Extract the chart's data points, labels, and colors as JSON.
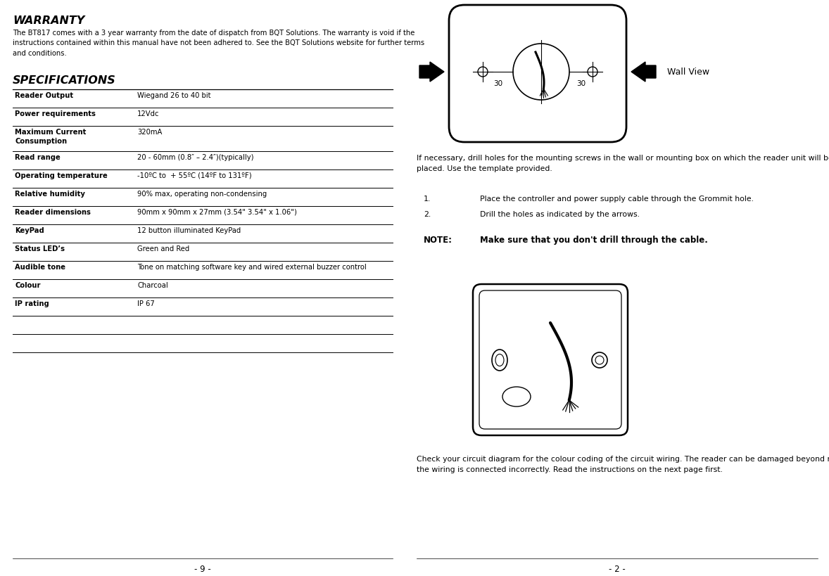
{
  "bg_color": "#ffffff",
  "warranty_title": "WARRANTY",
  "warranty_body": "The BT817 comes with a 3 year warranty from the date of dispatch from BQT Solutions. The warranty is void if the\ninstructions contained within this manual have not been adhered to. See the BQT Solutions website for further terms\nand conditions.",
  "specs_title": "SPECIFICATIONS",
  "specs_rows": [
    [
      "Reader Output",
      "Wiegand 26 to 40 bit"
    ],
    [
      "Power requirements",
      "12Vdc"
    ],
    [
      "Maximum Current\nConsumption",
      "320mA"
    ],
    [
      "Read range",
      "20 - 60mm (0.8″ – 2.4″)(typically)"
    ],
    [
      "Operating temperature",
      "-10ºC to  + 55ºC (14ºF to 131ºF)"
    ],
    [
      "Relative humidity",
      "90% max, operating non-condensing"
    ],
    [
      "Reader dimensions",
      "90mm x 90mm x 27mm (3.54\" 3.54\" x 1.06\")"
    ],
    [
      "KeyPad",
      "12 button illuminated KeyPad"
    ],
    [
      "Status LED’s",
      "Green and Red"
    ],
    [
      "Audible tone",
      "Tone on matching software key and wired external buzzer control"
    ],
    [
      "Colour",
      "Charcoal"
    ],
    [
      "IP rating",
      "IP 67"
    ],
    [
      "",
      ""
    ],
    [
      "",
      ""
    ]
  ],
  "right_para1": "If necessary, drill holes for the mounting screws in the wall or mounting box on which the reader unit will be\nplaced. Use the template provided.",
  "right_step1": "1.",
  "right_step1_text": "Place the controller and power supply cable through the Grommit hole.",
  "right_step2": "2.",
  "right_step2_text": "Drill the holes as indicated by the arrows.",
  "right_note_label": "NOTE:",
  "right_note_text": "Make sure that you don't drill through the cable.",
  "right_para2": "Check your circuit diagram for the colour coding of the circuit wiring. The reader can be damaged beyond repair if\nthe wiring is connected incorrectly. Read the instructions on the next page first.",
  "wall_view_label": "Wall View",
  "label_30_left": "30",
  "label_30_right": "30",
  "footer_left": "- 9 -",
  "footer_right": "- 2 -"
}
